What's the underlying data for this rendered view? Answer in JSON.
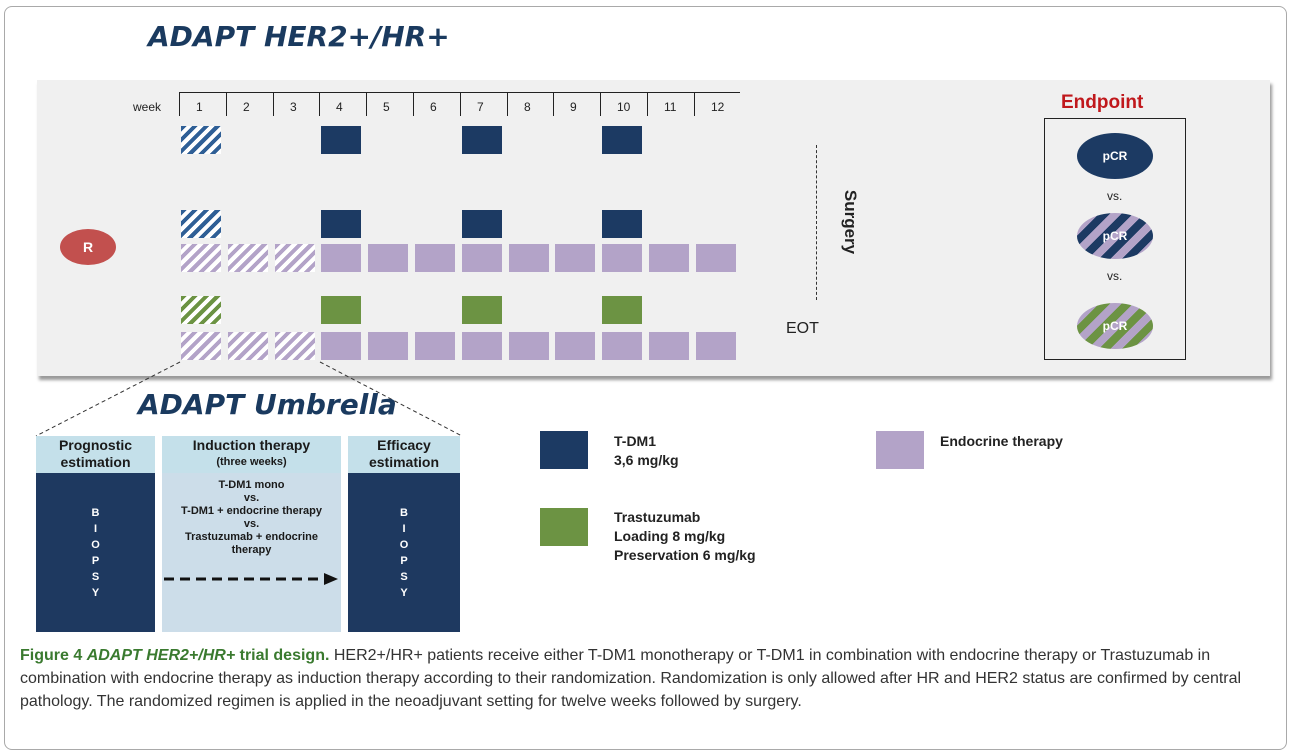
{
  "titles": {
    "top": "ADAPT HER2+/HR+",
    "umbrella": "ADAPT Umbrella"
  },
  "timeline": {
    "week_label": "week",
    "weeks": [
      "1",
      "2",
      "3",
      "4",
      "5",
      "6",
      "7",
      "8",
      "9",
      "10",
      "11",
      "12"
    ]
  },
  "arms": [
    {
      "rows": [
        {
          "drug": "T-DM1 (hatched week 1)",
          "weeks": [
            1,
            4,
            7,
            10
          ]
        }
      ]
    },
    {
      "rows": [
        {
          "drug": "T-DM1",
          "weeks": [
            1,
            4,
            7,
            10
          ]
        },
        {
          "drug": "Endocrine therapy",
          "weeks": [
            1,
            2,
            3,
            4,
            5,
            6,
            7,
            8,
            9,
            10,
            11,
            12
          ]
        }
      ]
    },
    {
      "rows": [
        {
          "drug": "Trastuzumab",
          "weeks": [
            1,
            4,
            7,
            10
          ]
        },
        {
          "drug": "Endocrine therapy",
          "weeks": [
            1,
            2,
            3,
            4,
            5,
            6,
            7,
            8,
            9,
            10,
            11,
            12
          ]
        }
      ]
    }
  ],
  "randomization_label": "R",
  "surgery_label": "Surgery",
  "eot_label": "EOT",
  "endpoint": {
    "title": "Endpoint",
    "pcr": "pCR",
    "vs": "vs."
  },
  "umbrella": {
    "prognostic": {
      "head1": "Prognostic",
      "head2": "estimation",
      "letters": [
        "B",
        "I",
        "O",
        "P",
        "S",
        "Y"
      ]
    },
    "induction": {
      "head1": "Induction therapy",
      "head2": "(three weeks)",
      "lines": [
        "T-DM1 mono",
        "vs.",
        "T-DM1 + endocrine therapy",
        "vs.",
        "Trastuzumab + endocrine",
        "therapy"
      ]
    },
    "efficacy": {
      "head1": "Efficacy",
      "head2": "estimation",
      "letters": [
        "B",
        "I",
        "O",
        "P",
        "S",
        "Y"
      ]
    }
  },
  "legend": {
    "tdm1": {
      "line1": "T-DM1",
      "line2": "3,6 mg/kg"
    },
    "trastuzumab": {
      "line1": "Trastuzumab",
      "line2": "Loading 8 mg/kg",
      "line3": "Preservation 6 mg/kg"
    },
    "endocrine": {
      "line1": "Endocrine therapy"
    }
  },
  "caption": {
    "label": "Figure 4",
    "title_italic": "ADAPT HER2+/HR+",
    "title_rest": " trial design.",
    "text": " HER2+/HR+ patients receive either T-DM1 monotherapy or T-DM1 in combination with endocrine therapy or Trastuzumab in combination with endocrine therapy as induction therapy according to their randomization. Randomization is only allowed after HR and HER2 status are confirmed by central pathology. The randomized regimen is applied in the neoadjuvant setting for twelve weeks followed by surgery."
  },
  "colors": {
    "navy": "#1c3a63",
    "green": "#6c9343",
    "lavender": "#b3a3c8",
    "endpoint_red": "#c0181c",
    "randomization": "#c2504e"
  }
}
